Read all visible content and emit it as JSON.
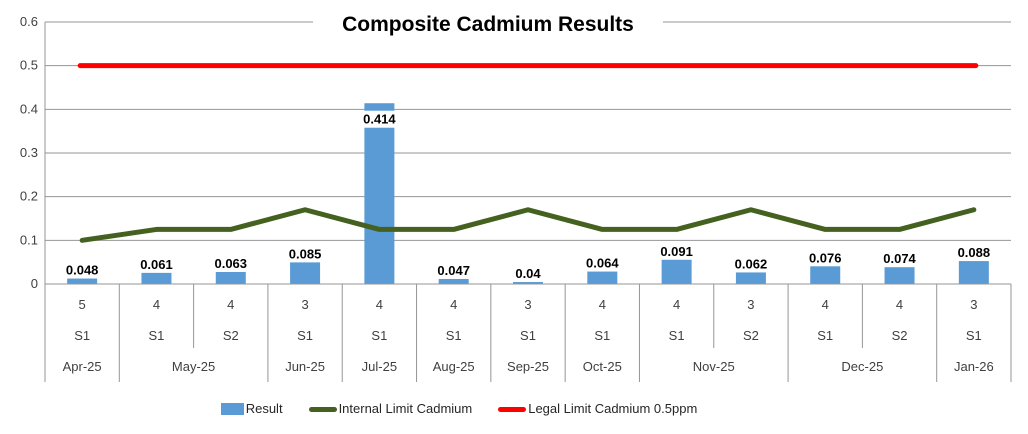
{
  "title": "Composite Cadmium Results",
  "y_axis": {
    "min": 0,
    "max": 0.6,
    "ticks": [
      "0",
      "0.1",
      "0.2",
      "0.3",
      "0.4",
      "0.5",
      "0.6"
    ]
  },
  "chart_data": {
    "type": "bar",
    "title": "Composite Cadmium Results",
    "ylim": [
      0,
      0.6
    ],
    "grid": true,
    "legend_position": "bottom",
    "columns": [
      {
        "count": "5",
        "sample": "S1",
        "month": "Apr-25"
      },
      {
        "count": "4",
        "sample": "S1",
        "month": "May-25"
      },
      {
        "count": "4",
        "sample": "S2",
        "month": "May-25"
      },
      {
        "count": "3",
        "sample": "S1",
        "month": "Jun-25"
      },
      {
        "count": "4",
        "sample": "S1",
        "month": "Jul-25"
      },
      {
        "count": "4",
        "sample": "S1",
        "month": "Aug-25"
      },
      {
        "count": "3",
        "sample": "S1",
        "month": "Sep-25"
      },
      {
        "count": "4",
        "sample": "S1",
        "month": "Oct-25"
      },
      {
        "count": "4",
        "sample": "S1",
        "month": "Nov-25"
      },
      {
        "count": "3",
        "sample": "S2",
        "month": "Nov-25"
      },
      {
        "count": "4",
        "sample": "S1",
        "month": "Dec-25"
      },
      {
        "count": "4",
        "sample": "S2",
        "month": "Dec-25"
      },
      {
        "count": "3",
        "sample": "S1",
        "month": "Jan-26"
      }
    ],
    "series": [
      {
        "name": "Result",
        "type": "bar",
        "color": "#5b9bd5",
        "values": [
          0.048,
          0.061,
          0.063,
          0.085,
          0.414,
          0.047,
          0.04,
          0.064,
          0.091,
          0.062,
          0.076,
          0.074,
          0.088
        ],
        "labels": [
          "0.048",
          "0.061",
          "0.063",
          "0.085",
          "0.414",
          "0.047",
          "0.04",
          "0.064",
          "0.091",
          "0.062",
          "0.076",
          "0.074",
          "0.088"
        ]
      },
      {
        "name": "Internal Limit Cadmium",
        "type": "line",
        "color": "#44611f",
        "values": [
          0.1,
          0.125,
          0.125,
          0.17,
          0.125,
          0.125,
          0.17,
          0.125,
          0.125,
          0.17,
          0.125,
          0.125,
          0.17
        ]
      },
      {
        "name": "Legal Limit Cadmium 0.5ppm",
        "type": "line",
        "color": "#ff0000",
        "values": [
          0.5,
          0.5,
          0.5,
          0.5,
          0.5,
          0.5,
          0.5,
          0.5,
          0.5,
          0.5,
          0.5,
          0.5,
          0.5
        ]
      }
    ]
  },
  "colors": {
    "bar": "#5b9bd5",
    "internal_limit": "#44611f",
    "legal_limit": "#ff0000",
    "gridline": "#969696",
    "tick_text": "#404040",
    "data_label_text": "#000000",
    "background": "#ffffff"
  }
}
